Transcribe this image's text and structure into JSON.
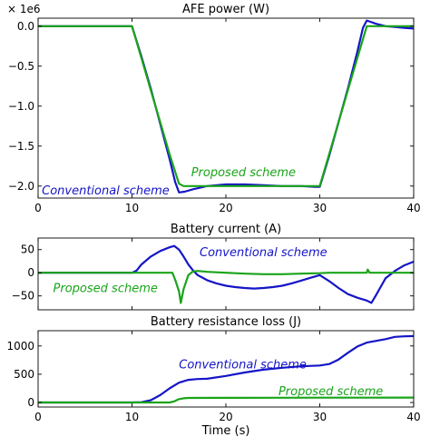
{
  "chart_data": [
    {
      "type": "line",
      "title": "AFE power (W)",
      "offset_text": "× 1e6",
      "xlabel": "",
      "ylabel": "",
      "xlim": [
        0,
        40
      ],
      "ylim": [
        -2.15,
        0.1
      ],
      "x_ticks": [
        0,
        10,
        20,
        30,
        40
      ],
      "x_tick_labels": [
        "0",
        "10",
        "20",
        "30",
        "40"
      ],
      "y_ticks": [
        0.0,
        -0.5,
        -1.0,
        -1.5,
        -2.0
      ],
      "y_tick_labels": [
        "0.0",
        "−0.5",
        "−1.0",
        "−1.5",
        "−2.0"
      ],
      "grid": false,
      "series": [
        {
          "name": "Conventional scheme",
          "color": "#1515c8",
          "x": [
            0,
            10,
            11,
            12,
            13,
            14,
            14.6,
            15,
            15.6,
            16.5,
            18,
            20,
            22,
            24,
            26,
            28,
            29.5,
            30,
            31,
            32,
            33,
            34,
            34.6,
            35,
            35.5,
            36,
            37,
            38,
            39,
            40
          ],
          "y": [
            0,
            0,
            -0.38,
            -0.78,
            -1.22,
            -1.66,
            -1.95,
            -2.08,
            -2.07,
            -2.04,
            -2.0,
            -1.98,
            -1.98,
            -1.99,
            -2.0,
            -2.0,
            -2.01,
            -2.01,
            -1.62,
            -1.2,
            -0.78,
            -0.32,
            -0.02,
            0.07,
            0.05,
            0.03,
            0.0,
            -0.01,
            -0.02,
            -0.03
          ]
        },
        {
          "name": "Proposed scheme",
          "color": "#1aa41a",
          "x": [
            0,
            10,
            11,
            12,
            13,
            14,
            15,
            15.5,
            16.5,
            18,
            20,
            22,
            24,
            26,
            28,
            30,
            31,
            32,
            33,
            34,
            35,
            36,
            38,
            40
          ],
          "y": [
            0,
            0,
            -0.4,
            -0.8,
            -1.2,
            -1.6,
            -1.97,
            -2.0,
            -2.0,
            -2.0,
            -2.0,
            -2.0,
            -2.0,
            -2.0,
            -2.0,
            -2.0,
            -1.6,
            -1.2,
            -0.8,
            -0.4,
            0.0,
            0.0,
            0.0,
            0.0
          ]
        }
      ],
      "annotations": [
        {
          "text": "Proposed scheme",
          "x": 16.3,
          "y": -1.82,
          "color": "#1aa41a"
        },
        {
          "text": "Conventional scheme",
          "x": 0.4,
          "y": -2.05,
          "color": "#1515c8"
        }
      ]
    },
    {
      "type": "line",
      "title": "Battery current (A)",
      "xlabel": "",
      "ylabel": "",
      "xlim": [
        0,
        40
      ],
      "ylim": [
        -80,
        75
      ],
      "x_ticks": [
        0,
        10,
        20,
        30,
        40
      ],
      "y_ticks": [
        50,
        0,
        -50
      ],
      "y_tick_labels": [
        "50",
        "0",
        "−50"
      ],
      "grid": false,
      "series": [
        {
          "name": "Conventional scheme",
          "color": "#1515c8",
          "x": [
            0,
            10,
            10.5,
            11,
            12,
            13,
            14,
            14.5,
            15,
            15.5,
            16,
            16.5,
            17,
            18,
            19,
            20,
            21,
            22,
            23,
            24,
            25,
            26,
            27,
            28,
            29,
            30,
            31,
            32,
            33,
            34,
            35,
            35.5,
            36,
            36.5,
            37,
            38,
            39,
            40
          ],
          "y": [
            0,
            0,
            5,
            18,
            35,
            47,
            55,
            58,
            50,
            35,
            18,
            5,
            -5,
            -16,
            -23,
            -28,
            -31,
            -33,
            -34,
            -33,
            -31,
            -28,
            -23,
            -17,
            -11,
            -5,
            -18,
            -33,
            -46,
            -54,
            -60,
            -65,
            -48,
            -30,
            -12,
            4,
            16,
            24
          ]
        },
        {
          "name": "Proposed scheme",
          "color": "#1aa41a",
          "x": [
            0,
            10,
            14.3,
            14.6,
            15,
            15.2,
            15.5,
            16,
            16.5,
            17,
            18,
            20,
            22,
            24,
            26,
            28,
            30,
            31,
            32,
            34,
            35,
            35.1,
            35.3,
            36,
            38,
            40
          ],
          "y": [
            0,
            0,
            0,
            -15,
            -40,
            -65,
            -35,
            -5,
            3,
            4,
            2,
            0,
            -2,
            -3,
            -3,
            -2,
            -1,
            0,
            0,
            0,
            0,
            7,
            0,
            0,
            0,
            0
          ]
        }
      ],
      "annotations": [
        {
          "text": "Conventional scheme",
          "x": 17.2,
          "y": 46,
          "color": "#1515c8"
        },
        {
          "text": "Proposed scheme",
          "x": 1.6,
          "y": -32,
          "color": "#1aa41a"
        }
      ]
    },
    {
      "type": "line",
      "title": "Battery resistance loss (J)",
      "xlabel": "Time (s)",
      "ylabel": "",
      "xlim": [
        0,
        40
      ],
      "ylim": [
        -80,
        1270
      ],
      "x_ticks": [
        0,
        10,
        20,
        30,
        40
      ],
      "x_tick_labels": [
        "0",
        "10",
        "20",
        "30",
        "40"
      ],
      "y_ticks": [
        0,
        500,
        1000
      ],
      "y_tick_labels": [
        "0",
        "500",
        "1000"
      ],
      "grid": false,
      "series": [
        {
          "name": "Conventional scheme",
          "color": "#1515c8",
          "x": [
            0,
            10,
            11,
            12,
            13,
            14,
            15,
            16,
            17,
            18,
            20,
            22,
            24,
            26,
            28,
            30,
            31,
            32,
            33,
            34,
            35,
            36,
            37,
            38,
            39,
            40
          ],
          "y": [
            0,
            0,
            5,
            40,
            130,
            250,
            350,
            400,
            415,
            420,
            470,
            530,
            580,
            615,
            640,
            655,
            680,
            760,
            880,
            990,
            1060,
            1090,
            1120,
            1160,
            1170,
            1175
          ]
        },
        {
          "name": "Proposed scheme",
          "color": "#1aa41a",
          "x": [
            0,
            14,
            14.5,
            15,
            15.5,
            16,
            20,
            25,
            30,
            35,
            40
          ],
          "y": [
            0,
            0,
            20,
            60,
            75,
            80,
            82,
            84,
            85,
            86,
            87
          ]
        }
      ],
      "annotations": [
        {
          "text": "Conventional scheme",
          "x": 15,
          "y": 680,
          "color": "#1515c8"
        },
        {
          "text": "Proposed scheme",
          "x": 25.6,
          "y": 210,
          "color": "#1aa41a"
        }
      ]
    }
  ]
}
